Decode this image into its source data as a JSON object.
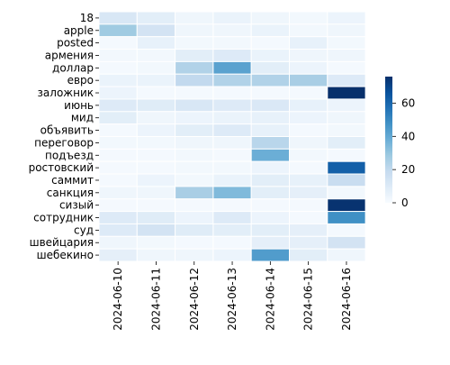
{
  "chart_data": {
    "type": "heatmap",
    "rows": [
      "18",
      "apple",
      "posted",
      "армения",
      "доллар",
      "евро",
      "заложник",
      "июнь",
      "мид",
      "объявить",
      "переговор",
      "подъезд",
      "ростовский",
      "саммит",
      "санкция",
      "сизый",
      "сотрудник",
      "суд",
      "швейцария",
      "шебекино"
    ],
    "columns": [
      "2024-06-10",
      "2024-06-11",
      "2024-06-12",
      "2024-06-13",
      "2024-06-14",
      "2024-06-15",
      "2024-06-16"
    ],
    "values": [
      [
        12,
        8,
        3,
        5,
        3,
        2,
        4
      ],
      [
        28,
        14,
        3,
        3,
        5,
        2,
        3
      ],
      [
        1,
        6,
        2,
        2,
        1,
        6,
        2
      ],
      [
        2,
        2,
        8,
        10,
        5,
        3,
        3
      ],
      [
        1,
        2,
        24,
        42,
        8,
        4,
        1
      ],
      [
        5,
        5,
        20,
        24,
        24,
        26,
        10
      ],
      [
        4,
        1,
        1,
        1,
        1,
        1,
        76
      ],
      [
        10,
        9,
        12,
        10,
        11,
        6,
        4
      ],
      [
        8,
        3,
        4,
        5,
        6,
        4,
        3
      ],
      [
        1,
        4,
        8,
        10,
        6,
        1,
        2
      ],
      [
        2,
        2,
        3,
        3,
        22,
        3,
        8
      ],
      [
        1,
        1,
        2,
        1,
        38,
        2,
        1
      ],
      [
        1,
        1,
        2,
        2,
        4,
        1,
        62
      ],
      [
        1,
        4,
        2,
        5,
        8,
        6,
        18
      ],
      [
        3,
        3,
        26,
        34,
        8,
        7,
        2
      ],
      [
        1,
        1,
        1,
        1,
        1,
        1,
        75
      ],
      [
        10,
        9,
        4,
        10,
        4,
        1,
        48
      ],
      [
        10,
        14,
        9,
        8,
        8,
        7,
        1
      ],
      [
        3,
        2,
        1,
        1,
        7,
        7,
        14
      ],
      [
        7,
        3,
        3,
        4,
        44,
        8,
        3
      ]
    ],
    "colorbar": {
      "min": 0,
      "max": 76,
      "ticks": [
        0,
        20,
        40,
        60
      ]
    },
    "colormap": [
      "#f7fbff",
      "#deebf7",
      "#c6dbef",
      "#9ecae1",
      "#6baed6",
      "#4292c6",
      "#2171b5",
      "#08519c",
      "#08306b"
    ],
    "grid_line_color": "#ffffff"
  }
}
